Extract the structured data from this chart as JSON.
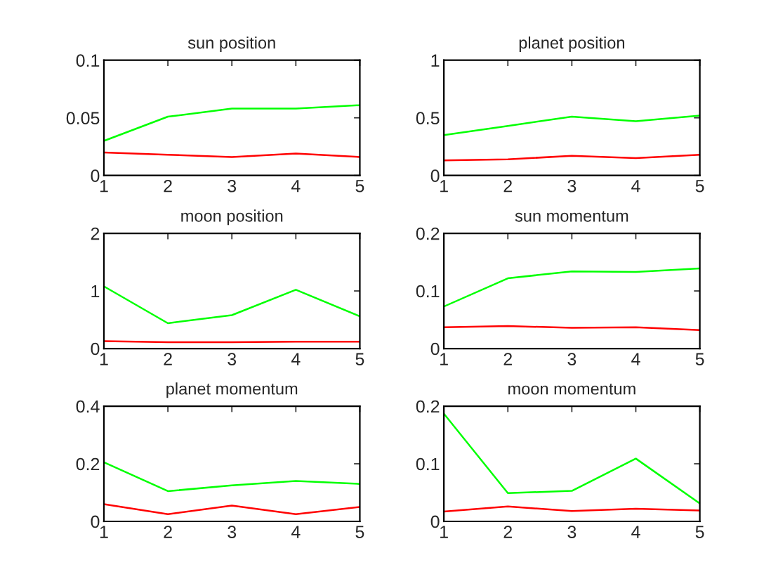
{
  "chart_data": [
    {
      "type": "line",
      "title": "sun position",
      "x": [
        1,
        2,
        3,
        4,
        5
      ],
      "xlim": [
        1,
        5
      ],
      "xticks": [
        1,
        2,
        3,
        4,
        5
      ],
      "ylim": [
        0,
        0.1
      ],
      "yticks": [
        0,
        0.05,
        0.1
      ],
      "grid": false,
      "legend": false,
      "series": [
        {
          "color": "#00ff00",
          "values": [
            0.03,
            0.051,
            0.058,
            0.058,
            0.061
          ]
        },
        {
          "color": "#ff0000",
          "values": [
            0.02,
            0.018,
            0.016,
            0.019,
            0.016
          ]
        }
      ]
    },
    {
      "type": "line",
      "title": "planet position",
      "x": [
        1,
        2,
        3,
        4,
        5
      ],
      "xlim": [
        1,
        5
      ],
      "xticks": [
        1,
        2,
        3,
        4,
        5
      ],
      "ylim": [
        0,
        1
      ],
      "yticks": [
        0,
        0.5,
        1
      ],
      "grid": false,
      "legend": false,
      "series": [
        {
          "color": "#00ff00",
          "values": [
            0.35,
            0.43,
            0.51,
            0.47,
            0.52
          ]
        },
        {
          "color": "#ff0000",
          "values": [
            0.13,
            0.14,
            0.17,
            0.15,
            0.18
          ]
        }
      ]
    },
    {
      "type": "line",
      "title": "moon position",
      "x": [
        1,
        2,
        3,
        4,
        5
      ],
      "xlim": [
        1,
        5
      ],
      "xticks": [
        1,
        2,
        3,
        4,
        5
      ],
      "ylim": [
        0,
        2
      ],
      "yticks": [
        0,
        1,
        2
      ],
      "grid": false,
      "legend": false,
      "series": [
        {
          "color": "#00ff00",
          "values": [
            1.08,
            0.44,
            0.58,
            1.02,
            0.56
          ]
        },
        {
          "color": "#ff0000",
          "values": [
            0.13,
            0.11,
            0.11,
            0.12,
            0.12
          ]
        }
      ]
    },
    {
      "type": "line",
      "title": "sun momentum",
      "x": [
        1,
        2,
        3,
        4,
        5
      ],
      "xlim": [
        1,
        5
      ],
      "xticks": [
        1,
        2,
        3,
        4,
        5
      ],
      "ylim": [
        0,
        0.2
      ],
      "yticks": [
        0,
        0.1,
        0.2
      ],
      "grid": false,
      "legend": false,
      "series": [
        {
          "color": "#00ff00",
          "values": [
            0.073,
            0.122,
            0.134,
            0.133,
            0.139
          ]
        },
        {
          "color": "#ff0000",
          "values": [
            0.037,
            0.039,
            0.036,
            0.037,
            0.032
          ]
        }
      ]
    },
    {
      "type": "line",
      "title": "planet momentum",
      "x": [
        1,
        2,
        3,
        4,
        5
      ],
      "xlim": [
        1,
        5
      ],
      "xticks": [
        1,
        2,
        3,
        4,
        5
      ],
      "ylim": [
        0,
        0.4
      ],
      "yticks": [
        0,
        0.2,
        0.4
      ],
      "grid": false,
      "legend": false,
      "series": [
        {
          "color": "#00ff00",
          "values": [
            0.205,
            0.105,
            0.125,
            0.14,
            0.13
          ]
        },
        {
          "color": "#ff0000",
          "values": [
            0.06,
            0.025,
            0.055,
            0.025,
            0.05
          ]
        }
      ]
    },
    {
      "type": "line",
      "title": "moon momentum",
      "x": [
        1,
        2,
        3,
        4,
        5
      ],
      "xlim": [
        1,
        5
      ],
      "xticks": [
        1,
        2,
        3,
        4,
        5
      ],
      "ylim": [
        0,
        0.2
      ],
      "yticks": [
        0,
        0.1,
        0.2
      ],
      "grid": false,
      "legend": false,
      "series": [
        {
          "color": "#00ff00",
          "values": [
            0.187,
            0.049,
            0.053,
            0.109,
            0.031
          ]
        },
        {
          "color": "#ff0000",
          "values": [
            0.017,
            0.026,
            0.018,
            0.022,
            0.019
          ]
        }
      ]
    }
  ]
}
